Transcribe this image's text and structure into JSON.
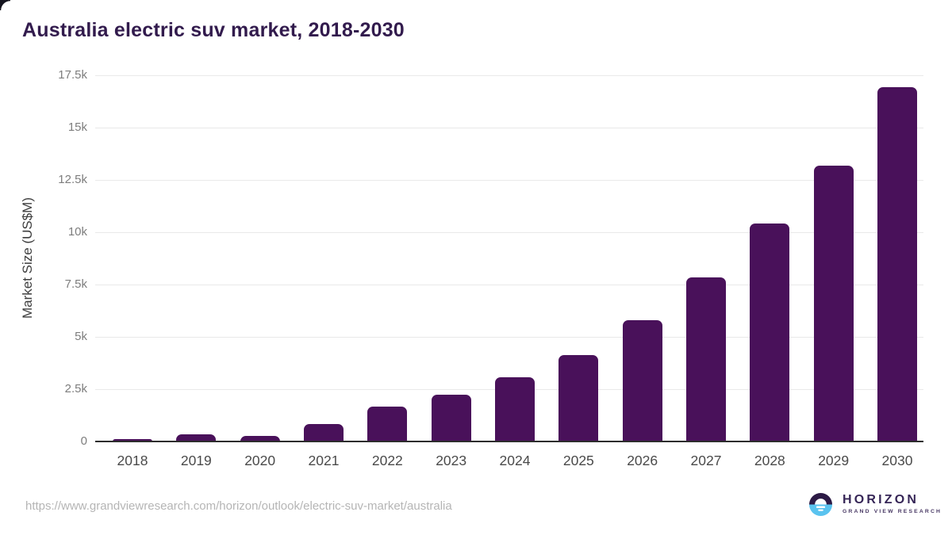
{
  "chart_data": {
    "type": "bar",
    "title": "Australia electric suv market, 2018-2030",
    "xlabel": "",
    "ylabel": "Market Size (US$M)",
    "categories": [
      "2018",
      "2019",
      "2020",
      "2021",
      "2022",
      "2023",
      "2024",
      "2025",
      "2026",
      "2027",
      "2028",
      "2029",
      "2030"
    ],
    "values": [
      120,
      340,
      260,
      850,
      1680,
      2220,
      3050,
      4130,
      5800,
      7840,
      10430,
      13200,
      16930
    ],
    "ylim": [
      0,
      17500
    ],
    "ytick_interval": 2500,
    "ytick_labels": [
      "0",
      "2.5k",
      "5k",
      "7.5k",
      "10k",
      "12.5k",
      "15k",
      "17.5k"
    ],
    "grid": true,
    "legend": false,
    "bar_color": "#49115a"
  },
  "footer": {
    "source_url": "https://www.grandviewresearch.com/horizon/outlook/electric-suv-market/australia",
    "logo": {
      "name": "HORIZON",
      "subtitle": "GRAND VIEW RESEARCH"
    }
  },
  "colors": {
    "bar": "#49115a",
    "title_text": "#321b4d",
    "logo_dark": "#2c1a45",
    "logo_blue": "#5ac3ef",
    "grid_line": "#e9e9e9",
    "axis_line": "#2d2d2d"
  }
}
